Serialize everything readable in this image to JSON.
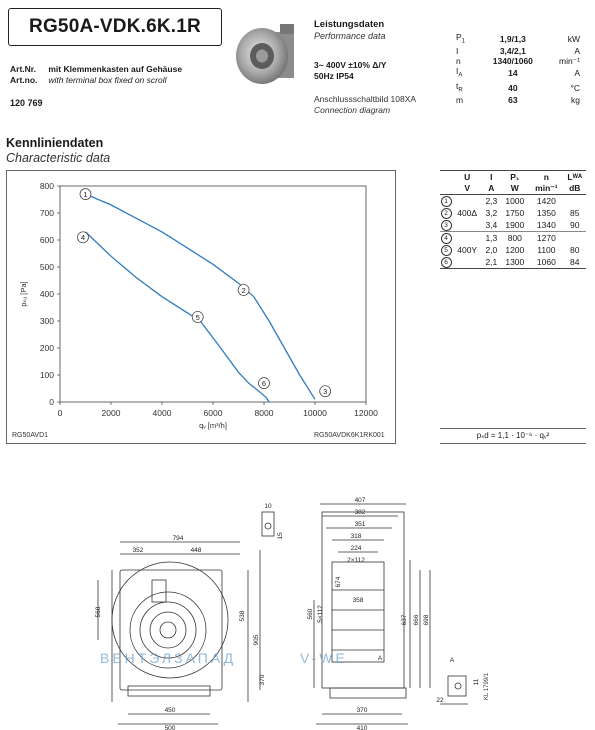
{
  "header": {
    "model": "RG50A-VDK.6K.1R",
    "art_nr_label_de": "Art.Nr.",
    "art_nr_text_de": "mit Klemmenkasten auf Gehäuse",
    "art_nr_label_en": "Art.no.",
    "art_nr_text_en": "with terminal box fixed on scroll",
    "art_number": "120 769"
  },
  "performance": {
    "title_de": "Leistungsdaten",
    "title_en": "Performance data",
    "voltage": "3~ 400V ±10%  Δ/Y",
    "freq": "50Hz  IP54",
    "diagram_de": "Anschlussschaltbild 108XA",
    "diagram_en": "Connection diagram",
    "rows": [
      {
        "sym": "P",
        "sub": "1",
        "val": "1,9/1,3",
        "unit": "kW"
      },
      {
        "sym": "I",
        "sub": "",
        "val": "3,4/2,1",
        "unit": "A"
      },
      {
        "sym": "n",
        "sub": "",
        "val": "1340/1060",
        "unit": "min⁻¹"
      },
      {
        "sym": "I",
        "sub": "A",
        "val": "14",
        "unit": "A"
      },
      {
        "sym": "t",
        "sub": "R",
        "val": "40",
        "unit": "°C"
      },
      {
        "sym": "m",
        "sub": "",
        "val": "63",
        "unit": "kg"
      }
    ]
  },
  "characteristic": {
    "title_de": "Kennliniendaten",
    "title_en": "Characteristic data"
  },
  "chart_data": {
    "type": "line",
    "title": "",
    "xlabel": "qᵥ [m³/h]",
    "ylabel": "pₛᵤ [Pa]",
    "xlim": [
      0,
      12000
    ],
    "ylim": [
      0,
      800
    ],
    "xticks": [
      "0",
      "2000",
      "4000",
      "6000",
      "8000",
      "10000",
      "12000"
    ],
    "yticks": [
      "0",
      "100",
      "200",
      "300",
      "400",
      "500",
      "600",
      "700",
      "800"
    ],
    "grid": false,
    "series": [
      {
        "name": "1",
        "x": [
          1000,
          2000,
          3000,
          4000,
          5000,
          6000,
          7000,
          7600
        ],
        "y": [
          770,
          730,
          680,
          630,
          570,
          510,
          440,
          390
        ]
      },
      {
        "name": "2",
        "x": [
          7600,
          8200,
          8800,
          9400,
          9800,
          10000
        ],
        "y": [
          390,
          300,
          200,
          100,
          40,
          10
        ]
      },
      {
        "name": "4",
        "x": [
          1000,
          2000,
          3000,
          4000,
          5000,
          5500
        ],
        "y": [
          630,
          540,
          460,
          390,
          330,
          300
        ]
      },
      {
        "name": "5",
        "x": [
          5500,
          6300,
          7000,
          7400
        ],
        "y": [
          300,
          200,
          110,
          70
        ]
      },
      {
        "name": "6",
        "x": [
          7400,
          7800,
          8100,
          8200
        ],
        "y": [
          70,
          40,
          15,
          0
        ]
      }
    ],
    "markers": [
      {
        "label": "1",
        "x": 1000,
        "y": 770
      },
      {
        "label": "2",
        "x": 7200,
        "y": 415
      },
      {
        "label": "3",
        "x": 10400,
        "y": 40
      },
      {
        "label": "4",
        "x": 900,
        "y": 610
      },
      {
        "label": "5",
        "x": 5400,
        "y": 315
      },
      {
        "label": "6",
        "x": 8000,
        "y": 70
      }
    ],
    "footer_left": "RG50AVD1",
    "footer_right": "RG50AVDK6K1RK001"
  },
  "char_table": {
    "headers": [
      "U",
      "I",
      "P₁",
      "n",
      "Lᵂᴬ"
    ],
    "units": [
      "V",
      "A",
      "W",
      "min⁻¹",
      "dB"
    ],
    "rows": [
      {
        "idx": "1",
        "u": "",
        "i": "2,3",
        "p": "1000",
        "n": "1420",
        "l": ""
      },
      {
        "idx": "2",
        "u": "400Δ",
        "i": "3,2",
        "p": "1750",
        "n": "1350",
        "l": "85"
      },
      {
        "idx": "3",
        "u": "",
        "i": "3,4",
        "p": "1900",
        "n": "1340",
        "l": "90"
      },
      {
        "idx": "4",
        "u": "",
        "i": "1,3",
        "p": "800",
        "n": "1270",
        "l": ""
      },
      {
        "idx": "5",
        "u": "400Y",
        "i": "2,0",
        "p": "1200",
        "n": "1100",
        "l": "80"
      },
      {
        "idx": "6",
        "u": "",
        "i": "2,1",
        "p": "1300",
        "n": "1060",
        "l": "84"
      }
    ],
    "formula": "pₛd = 1,1 · 10⁻⁶ · qᵥ²"
  },
  "drawing": {
    "dims_front": [
      "794",
      "352",
      "448",
      "568",
      "538",
      "905",
      "450",
      "500",
      "370"
    ],
    "dims_side": [
      "407",
      "382",
      "351",
      "318",
      "224",
      "2×112",
      "674",
      "358",
      "637",
      "666",
      "698",
      "560",
      "5×112",
      "370",
      "410"
    ],
    "dims_detail": [
      "10",
      "15",
      "A",
      "11",
      "22",
      "A"
    ],
    "code": "KL 1799/1",
    "watermark": "ВЕНТЭЛЗАПАД",
    "watermark2": "V-WE"
  },
  "colors": {
    "curve": "#2e7cbf",
    "text": "#1a1a1a"
  }
}
